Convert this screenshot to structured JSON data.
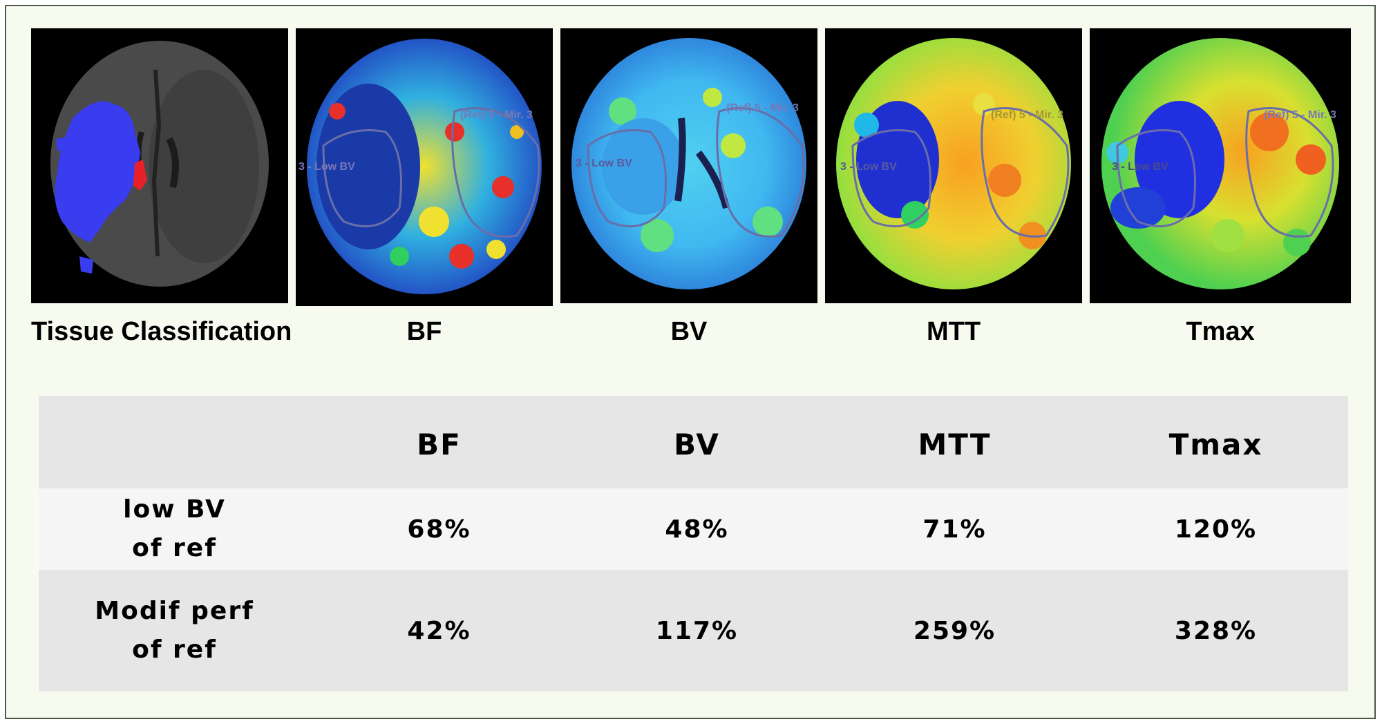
{
  "scans": [
    {
      "caption": "Tissue Classification",
      "overlays": []
    },
    {
      "caption": "BF",
      "overlays": [
        "(Ref) 5 - Mir. 3",
        "3 - Low BV"
      ]
    },
    {
      "caption": "BV",
      "overlays": [
        "(Ref) 5 - Mir. 3",
        "3 - Low BV"
      ]
    },
    {
      "caption": "MTT",
      "overlays": [
        "(Ref) 5 - Mir. 3",
        "3 - Low BV"
      ]
    },
    {
      "caption": "Tmax",
      "overlays": [
        "(Ref) 5 - Mir. 3",
        "3 - Low BV"
      ]
    }
  ],
  "table": {
    "headers": [
      "",
      "BF",
      "BV",
      "MTT",
      "Tmax"
    ],
    "rows": [
      {
        "label_line1": "low BV",
        "label_line2": "of ref",
        "values": [
          "68%",
          "48%",
          "71%",
          "120%"
        ]
      },
      {
        "label_line1": "Modif perf",
        "label_line2": "of ref",
        "values": [
          "42%",
          "117%",
          "259%",
          "328%"
        ]
      }
    ]
  },
  "colors": {
    "background": "#f7fbef",
    "border": "#4c5a46",
    "table_header_bg": "#e6e6e6",
    "table_row_light_bg": "#f5f5f5",
    "core_blue": "#3a3cf0",
    "penumbra_red": "#e8202a",
    "contour": "#6a6ea8"
  }
}
